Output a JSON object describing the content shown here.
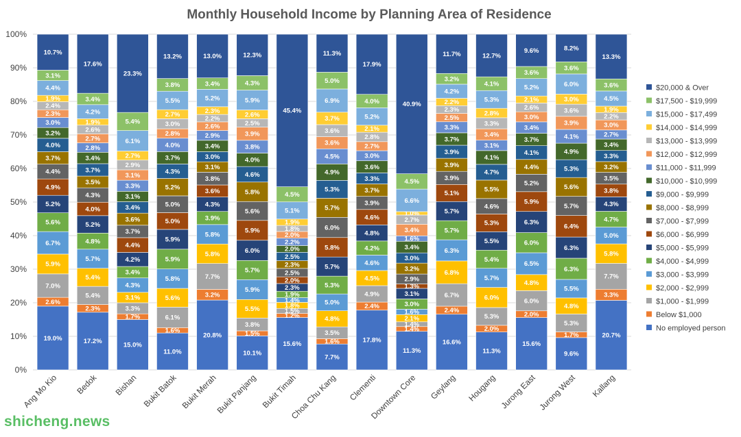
{
  "chart_data": {
    "type": "stacked_bar_100",
    "title": "Monthly Household Income by Planning Area of Residence",
    "xlabel": "",
    "ylabel": "",
    "ylim": [
      0,
      100
    ],
    "yticks": [
      "0%",
      "10%",
      "20%",
      "30%",
      "40%",
      "50%",
      "60%",
      "70%",
      "80%",
      "90%",
      "100%"
    ],
    "legend_position": "right",
    "categories": [
      "Ang Mo Kio",
      "Bedok",
      "Bishan",
      "Bukit Batok",
      "Bukit Merah",
      "Bukit Panjang",
      "Bukit Timah",
      "Choa Chu Kang",
      "Clementi",
      "Downtown Core",
      "Geylang",
      "Hougang",
      "Jurong East",
      "Jurong West",
      "Kallang"
    ],
    "series": [
      {
        "name": "No employed person",
        "color": "#4472c4",
        "values": [
          19.0,
          17.2,
          15.0,
          11.0,
          20.8,
          10.1,
          15.6,
          7.7,
          17.8,
          11.3,
          16.6,
          11.3,
          15.6,
          9.6,
          20.7
        ]
      },
      {
        "name": "Below $1,000",
        "color": "#ed7d31",
        "values": [
          2.6,
          2.3,
          1.7,
          1.6,
          3.2,
          1.5,
          1.2,
          1.6,
          2.4,
          1.4,
          2.4,
          2.0,
          2.0,
          1.7,
          3.3
        ]
      },
      {
        "name": "$1,000 - $1,999",
        "color": "#a5a5a5",
        "values": [
          7.0,
          5.4,
          3.3,
          6.1,
          7.7,
          3.8,
          1.5,
          3.5,
          4.9,
          1.4,
          6.7,
          5.3,
          6.0,
          5.3,
          7.7
        ]
      },
      {
        "name": "$2,000 - $2,999",
        "color": "#ffc000",
        "values": [
          5.9,
          5.4,
          3.1,
          5.6,
          5.8,
          5.5,
          1.8,
          4.8,
          4.5,
          2.1,
          6.8,
          6.0,
          4.8,
          4.8,
          5.8
        ]
      },
      {
        "name": "$3,000 - $3,999",
        "color": "#5b9bd5",
        "values": [
          6.7,
          5.7,
          4.3,
          5.8,
          5.8,
          5.9,
          1.4,
          5.0,
          4.6,
          1.6,
          6.3,
          5.7,
          6.5,
          5.5,
          5.0
        ]
      },
      {
        "name": "$4,000 - $4,999",
        "color": "#70ad47",
        "values": [
          5.6,
          4.8,
          3.4,
          5.9,
          3.9,
          5.7,
          1.9,
          5.3,
          4.2,
          3.0,
          5.7,
          5.4,
          6.0,
          6.3,
          4.7
        ]
      },
      {
        "name": "$5,000 - $5,999",
        "color": "#264478",
        "values": [
          5.2,
          5.2,
          4.2,
          5.9,
          4.3,
          6.0,
          2.3,
          5.7,
          4.8,
          3.1,
          5.7,
          5.5,
          6.3,
          6.3,
          4.3
        ]
      },
      {
        "name": "$6,000 - $6,999",
        "color": "#9e480e",
        "values": [
          4.9,
          4.0,
          4.4,
          5.0,
          3.6,
          5.9,
          2.0,
          5.8,
          4.6,
          1.3,
          5.1,
          5.3,
          5.9,
          6.4,
          3.8
        ]
      },
      {
        "name": "$7,000 - $7,999",
        "color": "#636363",
        "values": [
          4.4,
          4.3,
          3.7,
          5.0,
          3.8,
          5.6,
          2.5,
          6.0,
          3.9,
          2.9,
          3.9,
          4.6,
          5.2,
          5.7,
          3.5
        ]
      },
      {
        "name": "$8,000 - $8,999",
        "color": "#997300",
        "values": [
          3.7,
          3.5,
          3.6,
          5.2,
          3.1,
          5.8,
          2.3,
          5.7,
          3.7,
          3.2,
          3.9,
          5.5,
          4.4,
          5.6,
          3.2
        ]
      },
      {
        "name": "$9,000 - $9,999",
        "color": "#255e91",
        "values": [
          4.0,
          3.7,
          3.4,
          4.3,
          3.0,
          4.6,
          2.5,
          5.3,
          3.3,
          3.0,
          3.9,
          4.7,
          4.1,
          5.3,
          3.3
        ]
      },
      {
        "name": "$10,000 - $10,999",
        "color": "#43682b",
        "values": [
          3.2,
          3.4,
          3.1,
          3.7,
          3.4,
          4.0,
          2.0,
          4.9,
          3.6,
          3.4,
          3.7,
          4.1,
          3.7,
          4.9,
          3.4
        ]
      },
      {
        "name": "$11,000 - $11,999",
        "color": "#698ed0",
        "values": [
          3.0,
          2.8,
          3.3,
          4.0,
          2.9,
          3.8,
          2.2,
          4.5,
          3.0,
          1.6,
          3.3,
          3.1,
          3.4,
          4.1,
          2.7
        ]
      },
      {
        "name": "$12,000 - $12,999",
        "color": "#f1975a",
        "values": [
          2.3,
          2.7,
          3.1,
          2.8,
          2.6,
          3.9,
          2.0,
          3.6,
          2.7,
          3.4,
          2.5,
          3.4,
          3.0,
          3.9,
          3.0
        ]
      },
      {
        "name": "$13,000 - $13,999",
        "color": "#b7b7b7",
        "values": [
          2.4,
          2.6,
          2.9,
          3.0,
          2.2,
          2.5,
          1.8,
          3.6,
          2.8,
          2.7,
          2.3,
          3.3,
          2.6,
          3.6,
          2.2
        ]
      },
      {
        "name": "$14,000 - $14,999",
        "color": "#ffcd33",
        "values": [
          1.9,
          1.9,
          2.7,
          2.7,
          2.3,
          2.6,
          1.9,
          3.7,
          2.1,
          1.0,
          2.2,
          2.8,
          2.1,
          3.0,
          1.9
        ]
      },
      {
        "name": "$15,000 - $17,499",
        "color": "#7cafdd",
        "values": [
          4.4,
          4.2,
          6.1,
          5.5,
          5.2,
          5.9,
          5.1,
          6.9,
          5.2,
          6.6,
          4.2,
          5.3,
          5.2,
          6.0,
          4.5
        ]
      },
      {
        "name": "$17,500 - $19,999",
        "color": "#8cc168",
        "values": [
          3.1,
          3.4,
          5.4,
          3.8,
          3.4,
          4.3,
          4.5,
          5.0,
          4.0,
          4.5,
          3.2,
          4.1,
          3.6,
          3.6,
          3.6
        ]
      },
      {
        "name": "$20,000 & Over",
        "color": "#2f5597",
        "values": [
          10.7,
          17.6,
          23.3,
          13.2,
          13.0,
          12.3,
          45.4,
          11.3,
          17.9,
          40.9,
          11.7,
          12.7,
          9.6,
          8.2,
          13.3
        ]
      }
    ]
  },
  "watermark": "shicheng.news"
}
